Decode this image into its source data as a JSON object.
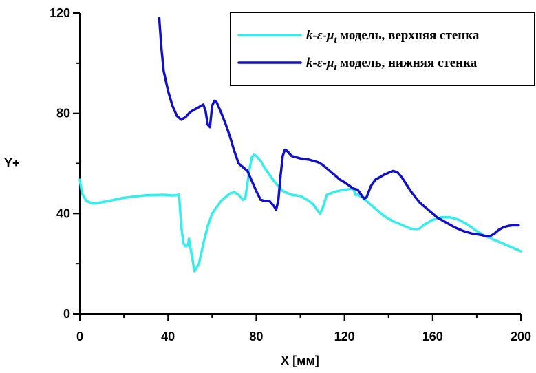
{
  "chart_data": {
    "type": "line",
    "xlabel": "X [мм]",
    "ylabel": "Y+",
    "xlim": [
      0,
      200
    ],
    "ylim": [
      0,
      120
    ],
    "x_ticks": [
      "0",
      "40",
      "80",
      "120",
      "160",
      "200"
    ],
    "y_ticks": [
      "0",
      "40",
      "80",
      "120"
    ],
    "legend_position": "top-right",
    "grid": false,
    "series": [
      {
        "name": "k-ε-μt модель, верхняя стенка",
        "legend_math": "k-ε-μ",
        "legend_sub": "t",
        "legend_rest": " модель, верхняя стенка",
        "color": "#33EEEE",
        "x": [
          0,
          1,
          3,
          6,
          10,
          20,
          30,
          38,
          42,
          44,
          45,
          46,
          47,
          48,
          49,
          49.5,
          50,
          51,
          52,
          54,
          56,
          58,
          60,
          64,
          68,
          70,
          72,
          74,
          75,
          76,
          77,
          78,
          79,
          80,
          82,
          84,
          86,
          88,
          90,
          92,
          96,
          100,
          104,
          106,
          108,
          109,
          110,
          112,
          116,
          120,
          124,
          125,
          126,
          128,
          130,
          134,
          138,
          142,
          146,
          150,
          153,
          154,
          156,
          160,
          164,
          168,
          172,
          176,
          180,
          184,
          188,
          192,
          196,
          200
        ],
        "y": [
          53.5,
          48,
          45,
          44,
          44.5,
          46.3,
          47.3,
          47.5,
          47.2,
          47.4,
          47.6,
          35,
          28,
          27,
          27.3,
          30,
          27,
          22,
          17,
          20,
          28,
          35,
          40,
          45,
          48,
          48.5,
          47.5,
          45.5,
          46,
          52,
          58,
          62.5,
          63.5,
          63,
          61,
          58,
          55.5,
          53,
          51,
          49,
          47.5,
          47,
          45,
          43.5,
          41,
          40,
          42,
          47.5,
          48.8,
          49.5,
          50,
          47.5,
          47.6,
          46.5,
          45,
          42,
          39,
          37,
          35.5,
          34,
          33.8,
          34,
          35.5,
          37.5,
          38.5,
          38.5,
          37.5,
          35.5,
          33,
          31,
          29.5,
          28,
          26.5,
          25
        ]
      },
      {
        "name": "k-ε-μt модель, нижняя стенка",
        "legend_math": "k-ε-μ",
        "legend_sub": "t",
        "legend_rest": " модель, нижняя стенка",
        "color": "#1010CC",
        "x": [
          36,
          37,
          38,
          40,
          42,
          44,
          46,
          48,
          50,
          52,
          54,
          56,
          57,
          58,
          59,
          60,
          61,
          62,
          63,
          64,
          66,
          68,
          70,
          72,
          74,
          76,
          78,
          80,
          82,
          84,
          86,
          88,
          89,
          90,
          91,
          92,
          93,
          94,
          96,
          100,
          104,
          108,
          110,
          112,
          114,
          116,
          118,
          120,
          124,
          126,
          128,
          129,
          130,
          132,
          134,
          138,
          142,
          144,
          146,
          150,
          154,
          158,
          162,
          166,
          170,
          174,
          178,
          182,
          184,
          186,
          188,
          190,
          192,
          194,
          196,
          199
        ],
        "y": [
          118,
          106,
          97,
          89,
          83,
          79,
          77.5,
          78.5,
          80.5,
          81.5,
          82.5,
          83.5,
          81,
          75.5,
          74.5,
          83,
          85,
          84.5,
          82.5,
          80.5,
          76,
          71,
          65,
          60,
          58.5,
          57,
          53,
          49,
          45.5,
          45,
          45,
          43,
          41.5,
          45,
          55,
          63,
          65.5,
          65,
          63,
          62,
          61.5,
          60.5,
          59.5,
          58,
          56.5,
          55,
          53.5,
          52.5,
          50,
          49.5,
          47,
          46,
          46.5,
          51,
          53.5,
          55.5,
          57,
          56.5,
          54.5,
          49,
          44.5,
          41.5,
          38.5,
          36.5,
          34.5,
          33,
          32,
          31.5,
          31,
          31,
          32,
          33.5,
          34.5,
          35,
          35.3,
          35.3
        ]
      }
    ]
  }
}
